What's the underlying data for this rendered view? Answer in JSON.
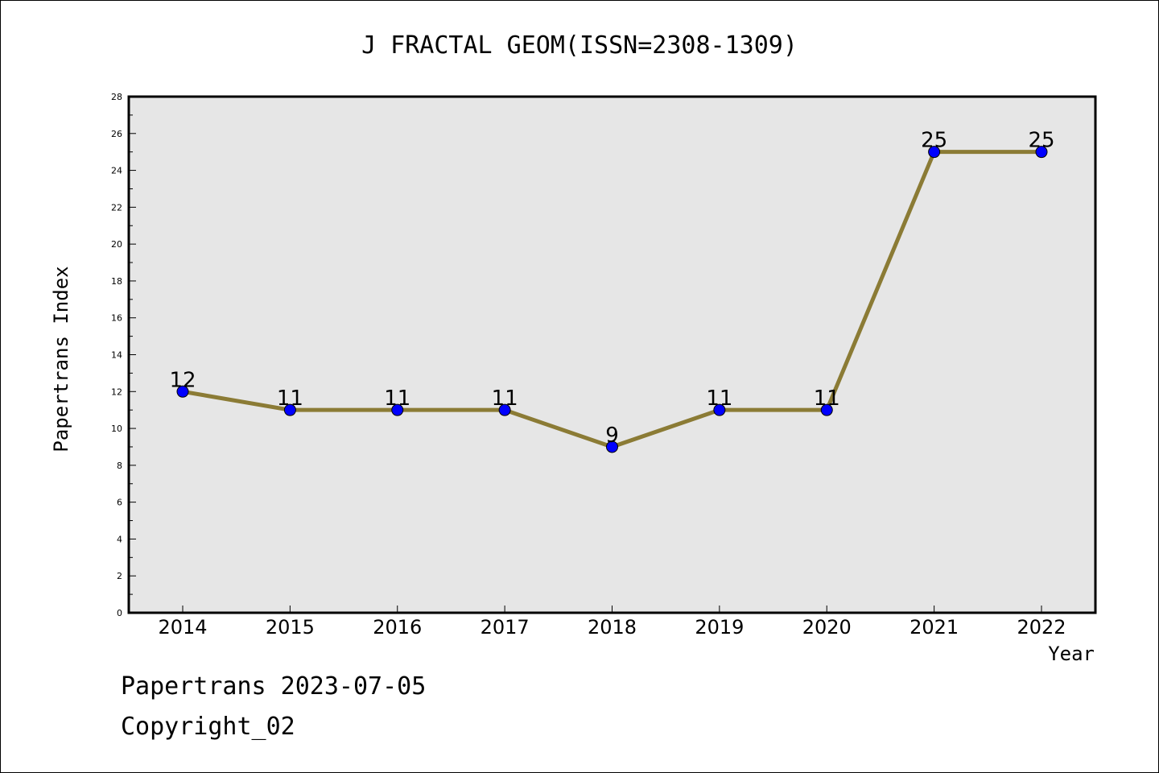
{
  "chart_data": {
    "type": "line",
    "title": "J FRACTAL GEOM(ISSN=2308-1309)",
    "xlabel": "Year",
    "ylabel": "Papertrans Index",
    "categories": [
      "2014",
      "2015",
      "2016",
      "2017",
      "2018",
      "2019",
      "2020",
      "2021",
      "2022"
    ],
    "values": [
      12,
      11,
      11,
      11,
      9,
      11,
      11,
      25,
      25
    ],
    "data_labels": [
      "12",
      "11",
      "11",
      "11",
      "9",
      "11",
      "11",
      "25",
      "25"
    ],
    "ylim": [
      0,
      28
    ],
    "yticks": [
      0,
      2,
      4,
      6,
      8,
      10,
      12,
      14,
      16,
      18,
      20,
      22,
      24,
      26,
      28
    ],
    "grid": false,
    "legend": "none",
    "colors": {
      "line": "#8b7b35",
      "marker": "#0000ff",
      "plot_background": "#e6e6e6"
    }
  },
  "footer": {
    "date_line": "Papertrans 2023-07-05",
    "copyright_line": "Copyright_02"
  }
}
